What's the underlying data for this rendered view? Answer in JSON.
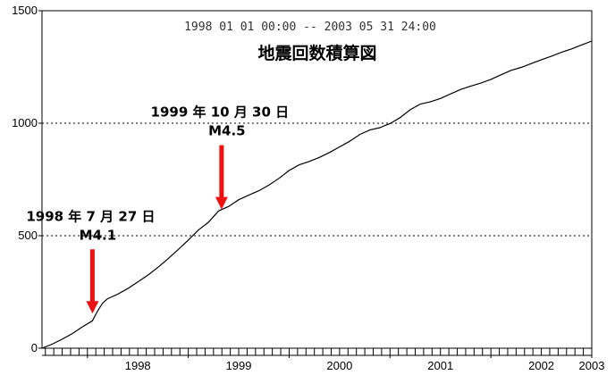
{
  "chart_data": {
    "type": "line",
    "title": "地震回数積算図",
    "subtitle": "1998 01 01 00:00 -- 2003 05 31 24:00",
    "xlabel": "",
    "ylabel": "",
    "ylim": [
      0,
      1500
    ],
    "y_ticks": [
      "0",
      "500",
      "1000",
      "1500"
    ],
    "y_tick_values": [
      0,
      500,
      1000,
      1500
    ],
    "x_ticks": [
      "1998",
      "1999",
      "2000",
      "2001",
      "2002",
      "2003"
    ],
    "xlim": [
      1997.55,
      2003.0
    ],
    "grid": "horizontal dotted at 500 and 1000",
    "series": [
      {
        "color": "#000000",
        "x": [
          1997.55,
          1997.65,
          1997.75,
          1997.85,
          1997.95,
          1998.05,
          1998.1,
          1998.15,
          1998.2,
          1998.3,
          1998.4,
          1998.5,
          1998.6,
          1998.7,
          1998.8,
          1998.9,
          1999.0,
          1999.1,
          1999.2,
          1999.3,
          1999.4,
          1999.45,
          1999.5,
          1999.6,
          1999.7,
          1999.8,
          1999.9,
          2000.0,
          2000.1,
          2000.2,
          2000.3,
          2000.4,
          2000.5,
          2000.6,
          2000.7,
          2000.8,
          2000.9,
          2000.95,
          2001.0,
          2001.1,
          2001.2,
          2001.3,
          2001.4,
          2001.5,
          2001.6,
          2001.7,
          2001.8,
          2001.9,
          2002.0,
          2002.1,
          2002.2,
          2002.3,
          2002.4,
          2002.5,
          2002.6,
          2002.7,
          2002.8,
          2002.9,
          2003.0
        ],
        "y": [
          0,
          18,
          40,
          65,
          95,
          122,
          165,
          200,
          220,
          240,
          265,
          295,
          325,
          360,
          398,
          438,
          480,
          525,
          560,
          610,
          630,
          645,
          660,
          680,
          700,
          725,
          755,
          790,
          815,
          830,
          848,
          870,
          895,
          920,
          950,
          970,
          980,
          990,
          998,
          1025,
          1060,
          1085,
          1095,
          1110,
          1130,
          1150,
          1165,
          1178,
          1195,
          1215,
          1235,
          1248,
          1265,
          1282,
          1298,
          1315,
          1330,
          1348,
          1365
        ]
      }
    ],
    "annotations": [
      {
        "line1": "1998 年 7 月 27 日",
        "line2": "M4.1",
        "x": 1998.05,
        "y": 122,
        "color": "#ee1111"
      },
      {
        "line1": "1999 年 10 月 30 日",
        "line2": "M4.5",
        "x": 1999.33,
        "y": 585,
        "color": "#ee1111"
      }
    ]
  }
}
